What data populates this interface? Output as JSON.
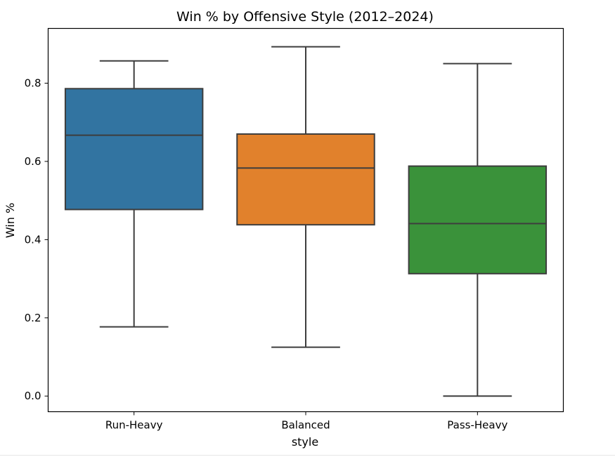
{
  "chart_data": {
    "type": "boxplot",
    "title": "Win % by Offensive Style (2012–2024)",
    "xlabel": "style",
    "ylabel": "Win %",
    "ylim": [
      -0.04,
      0.94
    ],
    "yticks": [
      0.0,
      0.2,
      0.4,
      0.6,
      0.8
    ],
    "ytick_labels": [
      "0.0",
      "0.2",
      "0.4",
      "0.6",
      "0.8"
    ],
    "grid": false,
    "legend": false,
    "categories": [
      "Run-Heavy",
      "Balanced",
      "Pass-Heavy"
    ],
    "boxes": [
      {
        "category": "Run-Heavy",
        "whisker_low": 0.177,
        "q1": 0.477,
        "median": 0.667,
        "q3": 0.786,
        "whisker_high": 0.857,
        "color": "#3274a1"
      },
      {
        "category": "Balanced",
        "whisker_low": 0.125,
        "q1": 0.438,
        "median": 0.583,
        "q3": 0.67,
        "whisker_high": 0.893,
        "color": "#e1812c"
      },
      {
        "category": "Pass-Heavy",
        "whisker_low": 0.0,
        "q1": 0.313,
        "median": 0.441,
        "q3": 0.588,
        "whisker_high": 0.85,
        "color": "#3a923a"
      }
    ],
    "line_color": "#3d3d3d"
  }
}
